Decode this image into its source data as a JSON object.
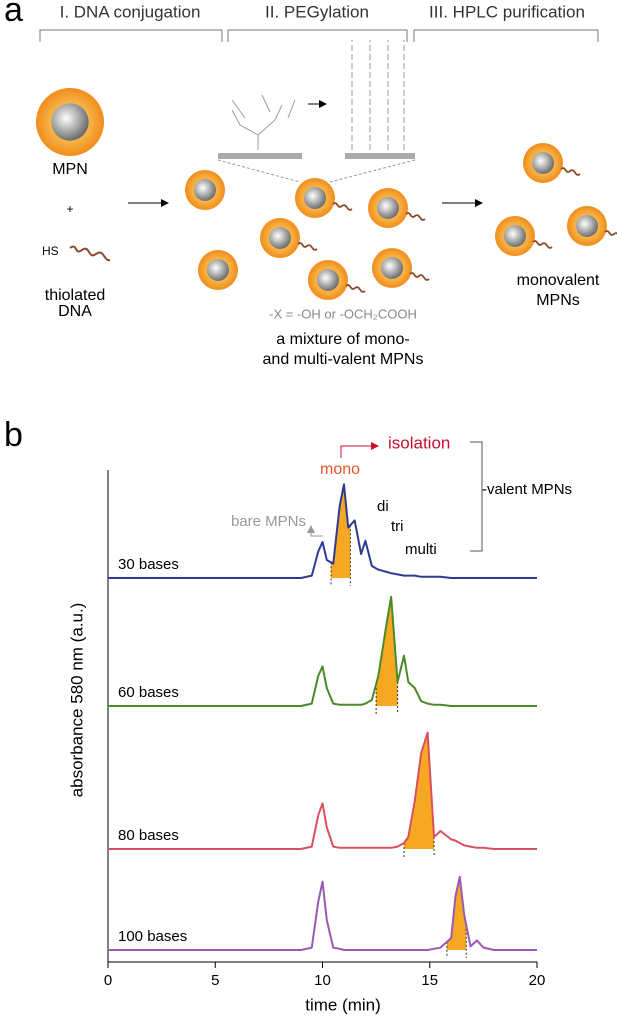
{
  "panel_a": {
    "label": "a",
    "steps": [
      "I. DNA conjugation",
      "II. PEGylation",
      "III. HPLC purification"
    ],
    "mpn_label": "MPN",
    "plus": "+",
    "hs": "HS",
    "thiolated_dna": [
      "thiolated",
      "DNA"
    ],
    "x_note": "-X = -OH or -OCH₂COOH",
    "mixture": [
      "a mixture of mono-",
      "and multi-valent MPNs"
    ],
    "monovalent": [
      "monovalent",
      "MPNs"
    ]
  },
  "chart_data": {
    "type": "line",
    "label": "b",
    "xlabel": "time (min)",
    "ylabel": "absorbance 580 nm (a.u.)",
    "x": [
      0,
      5,
      9,
      9.5,
      9.8,
      10,
      10.2,
      10.5,
      10.8,
      11,
      11.2,
      11.5,
      11.8,
      12,
      12.3,
      12.6,
      13,
      13.2,
      13.5,
      13.8,
      14,
      14.3,
      14.6,
      14.9,
      15.2,
      15.5,
      16,
      16.2,
      16.4,
      16.6,
      16.9,
      17.2,
      17.5,
      18,
      20
    ],
    "xlim": [
      0,
      20
    ],
    "xticks": [
      0,
      5,
      10,
      15,
      20
    ],
    "ylim": [
      0,
      1
    ],
    "highlight_color": "#f7a823",
    "series": [
      {
        "name": "30 bases",
        "color": "#2e3a94",
        "highlight": [
          10.4,
          11.3
        ],
        "values": [
          0,
          0,
          0,
          0.02,
          0.22,
          0.3,
          0.15,
          0.12,
          0.6,
          0.78,
          0.42,
          0.48,
          0.2,
          0.31,
          0.1,
          0.07,
          0.05,
          0.04,
          0.03,
          0.02,
          0.02,
          0.02,
          0.01,
          0.01,
          0.01,
          0.01,
          0,
          0,
          0,
          0,
          0,
          0,
          0,
          0,
          0
        ]
      },
      {
        "name": "60 bases",
        "color": "#4a8a2a",
        "highlight": [
          12.5,
          13.5
        ],
        "values": [
          0,
          0,
          0,
          0.02,
          0.25,
          0.33,
          0.15,
          0.02,
          0.01,
          0.01,
          0.01,
          0.01,
          0.01,
          0.02,
          0.05,
          0.25,
          0.7,
          0.91,
          0.2,
          0.42,
          0.2,
          0.15,
          0.04,
          0.02,
          0.01,
          0.01,
          0,
          0,
          0,
          0,
          0,
          0,
          0,
          0,
          0
        ]
      },
      {
        "name": "80 bases",
        "color": "#d9505e",
        "highlight": [
          13.8,
          15.2
        ],
        "values": [
          0,
          0,
          0,
          0.02,
          0.28,
          0.38,
          0.18,
          0.02,
          0.01,
          0.01,
          0.01,
          0.01,
          0.01,
          0.01,
          0.01,
          0.01,
          0.01,
          0.01,
          0.02,
          0.05,
          0.1,
          0.4,
          0.8,
          0.97,
          0.1,
          0.15,
          0.08,
          0.07,
          0.05,
          0.03,
          0.02,
          0.01,
          0.01,
          0,
          0
        ]
      },
      {
        "name": "100 bases",
        "color": "#9b59b6",
        "highlight": [
          15.8,
          16.7
        ],
        "values": [
          0,
          0,
          0,
          0.02,
          0.4,
          0.57,
          0.25,
          0.02,
          0.01,
          0,
          0,
          0,
          0,
          0,
          0,
          0,
          0,
          0,
          0,
          0,
          0,
          0,
          0,
          0,
          0.01,
          0.02,
          0.1,
          0.45,
          0.61,
          0.3,
          0.03,
          0.08,
          0.02,
          0,
          0
        ]
      }
    ],
    "annotations": {
      "mono": "mono",
      "isolation": "isolation",
      "di": "di",
      "tri": "tri",
      "multi": "multi",
      "bare": "bare MPNs",
      "valent": "-valent MPNs"
    }
  }
}
